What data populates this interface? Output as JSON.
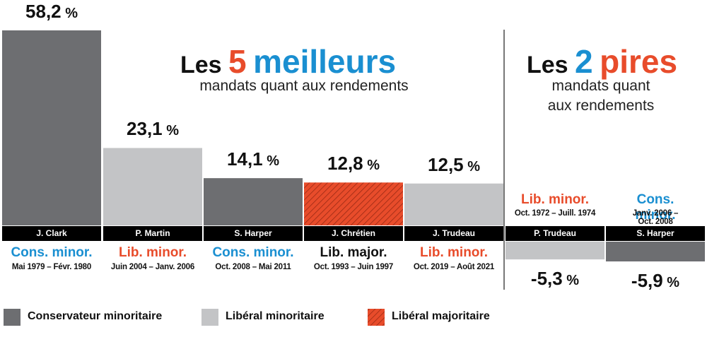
{
  "colors": {
    "cons_minor": "#6d6e71",
    "lib_minor": "#c3c4c6",
    "lib_major": "#e84c2b",
    "blue_text": "#1a8fd1",
    "orange_text": "#e84c2b"
  },
  "best": {
    "heading_prefix": "Les",
    "heading_number": "5",
    "heading_word": "meilleurs",
    "subtitle": "mandats quant aux rendements"
  },
  "worst": {
    "heading_prefix": "Les",
    "heading_number": "2",
    "heading_word": "pires",
    "subtitle_line1": "mandats quant",
    "subtitle_line2": "aux rendements"
  },
  "chart_data": {
    "type": "bar",
    "unit": "%",
    "categories": [
      "J. Clark",
      "P. Martin",
      "S. Harper",
      "J. Chrétien",
      "J. Trudeau",
      "P. Trudeau",
      "S. Harper"
    ],
    "values": [
      58.2,
      23.1,
      14.1,
      12.8,
      12.5,
      -5.3,
      -5.9
    ],
    "value_labels": [
      "58,2",
      "23,1",
      "14,1",
      "12,8",
      "12,5",
      "-5,3",
      "-5,9"
    ],
    "parties": [
      "Cons. minor.",
      "Lib. minor.",
      "Cons. minor.",
      "Lib. major.",
      "Lib. minor.",
      "Lib. minor.",
      "Cons. minor."
    ],
    "party_types": [
      "cons_minor",
      "lib_minor",
      "cons_minor",
      "lib_major",
      "lib_minor",
      "lib_minor",
      "cons_minor"
    ],
    "periods": [
      "Mai 1979 – Févr. 1980",
      "Juin 2004 – Janv. 2006",
      "Oct. 2008 – Mai 2011",
      "Oct. 1993 – Juin 1997",
      "Oct. 2019 – Août 2021",
      "Oct. 1972 – Juill. 1974",
      "Janv. 2006 – Oct. 2008"
    ],
    "legend": [
      {
        "key": "cons_minor",
        "label": "Conservateur minoritaire"
      },
      {
        "key": "lib_minor",
        "label": "Libéral minoritaire"
      },
      {
        "key": "lib_major",
        "label": "Libéral majoritaire"
      }
    ]
  }
}
